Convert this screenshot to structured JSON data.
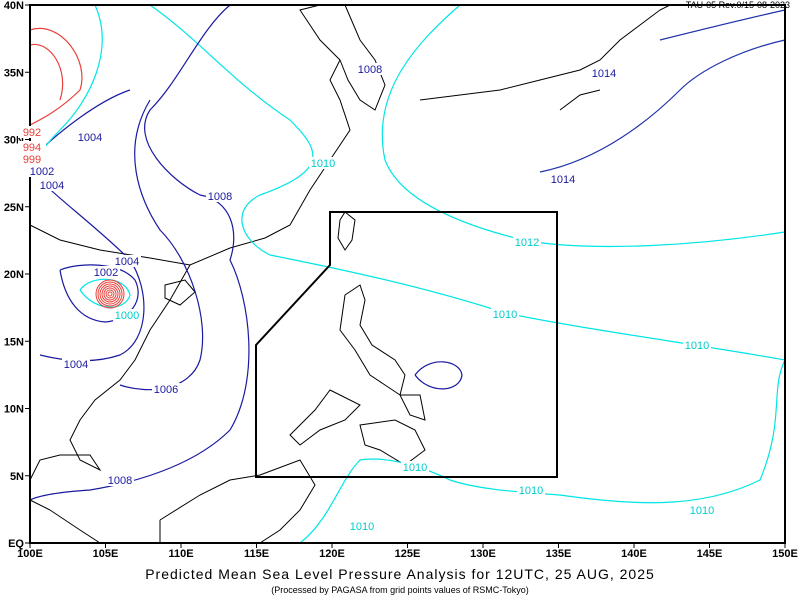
{
  "header": {
    "version": "TAU-05 Rev.0/15-08-2023"
  },
  "title": "Predicted Mean Sea Level Pressure Analysis for 12UTC, 25 AUG, 2025",
  "subtitle": "(Processed by PAGASA from grid points values of RSMC-Tokyo)",
  "axes": {
    "lon_ticks": [
      "100E",
      "105E",
      "110E",
      "115E",
      "120E",
      "125E",
      "130E",
      "135E",
      "140E",
      "145E",
      "150E"
    ],
    "lat_ticks": [
      "EQ",
      "5N",
      "10N",
      "15N",
      "20N",
      "25N",
      "30N",
      "35N",
      "40N"
    ]
  },
  "colors": {
    "high_isobar": "#00e5e5",
    "low_isobar": "#1a1aa0",
    "deep_low": "#e8403a",
    "coast": "#000000",
    "par_box": "#000000"
  },
  "isobar_labels": [
    {
      "text": "1008",
      "color": "blue"
    },
    {
      "text": "1014",
      "color": "blue"
    },
    {
      "text": "1014",
      "color": "blue"
    },
    {
      "text": "1010",
      "color": "cyan"
    },
    {
      "text": "1004",
      "color": "blue"
    },
    {
      "text": "1008",
      "color": "blue"
    },
    {
      "text": "1004",
      "color": "blue"
    },
    {
      "text": "1002",
      "color": "blue"
    },
    {
      "text": "1012",
      "color": "cyan"
    },
    {
      "text": "1004",
      "color": "blue"
    },
    {
      "text": "1002",
      "color": "blue"
    },
    {
      "text": "1000",
      "color": "cyan"
    },
    {
      "text": "1010",
      "color": "cyan"
    },
    {
      "text": "1010",
      "color": "cyan"
    },
    {
      "text": "1004",
      "color": "blue"
    },
    {
      "text": "1006",
      "color": "blue"
    },
    {
      "text": "1010",
      "color": "cyan"
    },
    {
      "text": "1008",
      "color": "blue"
    },
    {
      "text": "1010",
      "color": "cyan"
    },
    {
      "text": "1010",
      "color": "cyan"
    },
    {
      "text": "1010",
      "color": "cyan"
    },
    {
      "text": "992",
      "color": "red"
    },
    {
      "text": "994",
      "color": "red"
    },
    {
      "text": "999",
      "color": "red"
    }
  ]
}
